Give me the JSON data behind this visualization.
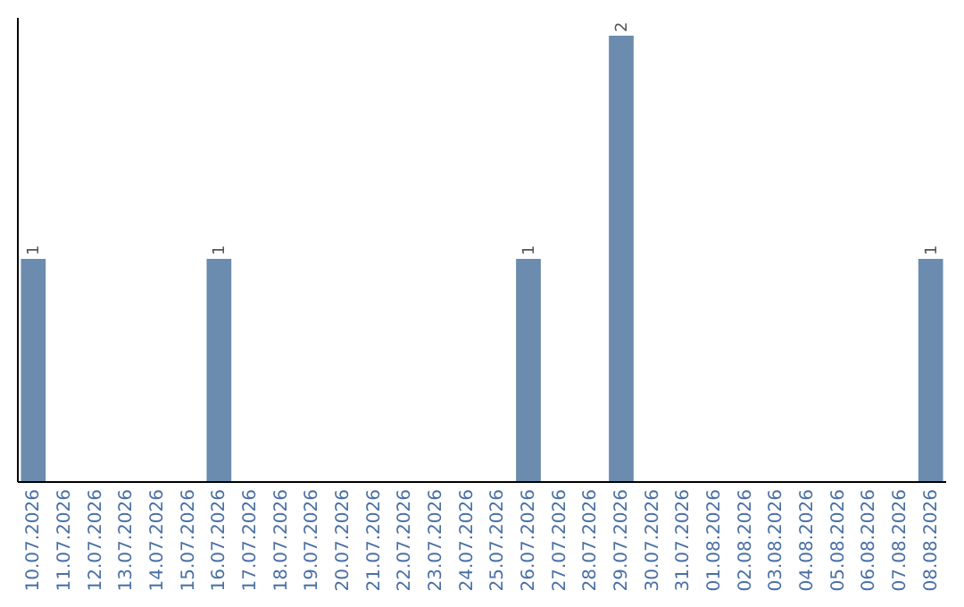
{
  "chart_data": {
    "type": "bar",
    "categories": [
      "10.07.2026",
      "11.07.2026",
      "12.07.2026",
      "13.07.2026",
      "14.07.2026",
      "15.07.2026",
      "16.07.2026",
      "17.07.2026",
      "18.07.2026",
      "19.07.2026",
      "20.07.2026",
      "21.07.2026",
      "22.07.2026",
      "23.07.2026",
      "24.07.2026",
      "25.07.2026",
      "26.07.2026",
      "27.07.2026",
      "28.07.2026",
      "29.07.2026",
      "30.07.2026",
      "31.07.2026",
      "01.08.2026",
      "02.08.2026",
      "03.08.2026",
      "04.08.2026",
      "05.08.2026",
      "06.08.2026",
      "07.08.2026",
      "08.08.2026"
    ],
    "values": [
      1,
      0,
      0,
      0,
      0,
      0,
      1,
      0,
      0,
      0,
      0,
      0,
      0,
      0,
      0,
      0,
      1,
      0,
      0,
      2,
      0,
      0,
      0,
      0,
      0,
      0,
      0,
      0,
      0,
      1
    ],
    "value_labels": [
      "1",
      null,
      null,
      null,
      null,
      null,
      "1",
      null,
      null,
      null,
      null,
      null,
      null,
      null,
      null,
      null,
      "1",
      null,
      null,
      "2",
      null,
      null,
      null,
      null,
      null,
      null,
      null,
      null,
      null,
      "1"
    ],
    "color": "#6b8cae",
    "ylim": [
      0,
      2.08
    ],
    "tick_labels": "x"
  }
}
